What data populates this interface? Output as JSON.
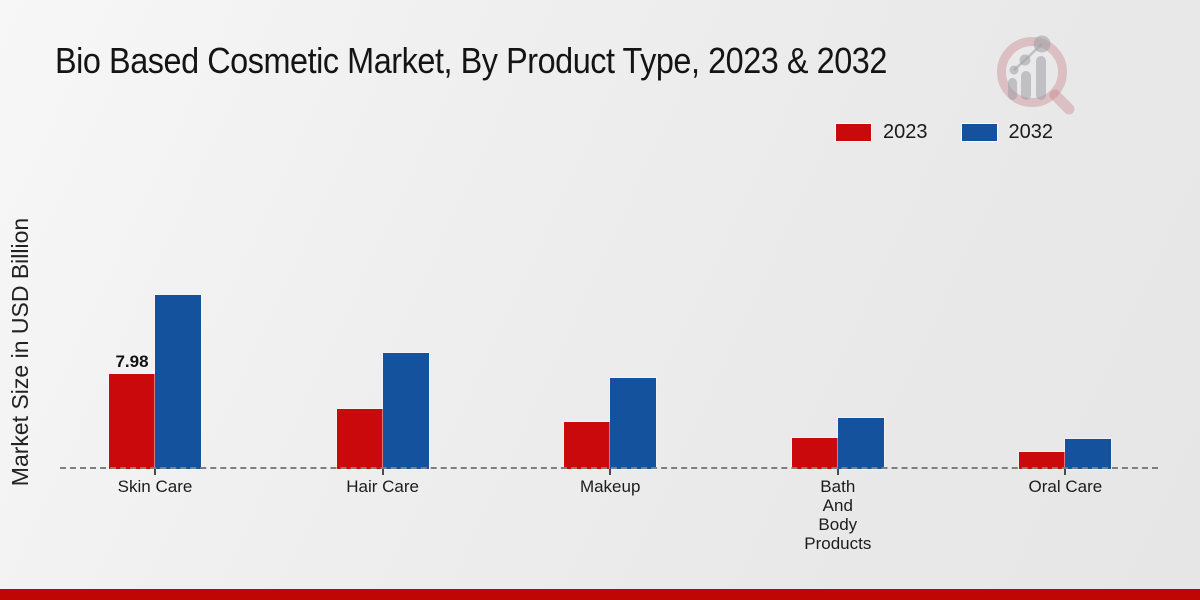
{
  "title": "Bio Based Cosmetic Market, By Product Type, 2023 & 2032",
  "ylabel": "Market Size in USD Billion",
  "legend": {
    "items": [
      {
        "label": "2023",
        "color": "#c9090b"
      },
      {
        "label": "2032",
        "color": "#15529e"
      }
    ]
  },
  "logo": {
    "name": "magnifier-bar-chart-watermark"
  },
  "footer": {
    "bar_color": "#c00505"
  },
  "colors": {
    "series_2023": "#c9090b",
    "series_2032": "#15529e",
    "baseline_dash": "#7f7f7f",
    "footer_stripe": "#c00505",
    "text": "#1a1a1a"
  },
  "chart_data": {
    "type": "bar",
    "title": "Bio Based Cosmetic Market, By Product Type, 2023 & 2032",
    "xlabel": "",
    "ylabel": "Market Size in USD Billion",
    "categories": [
      "Skin Care",
      "Hair Care",
      "Makeup",
      "Bath And Body Products",
      "Oral Care"
    ],
    "categories_display": [
      "Skin Care",
      "Hair Care",
      "Makeup",
      "Bath\nAnd\nBody\nProducts",
      "Oral Care"
    ],
    "series": [
      {
        "name": "2023",
        "color": "#c9090b",
        "values": [
          7.98,
          5.0,
          3.95,
          2.6,
          1.45
        ]
      },
      {
        "name": "2032",
        "color": "#15529e",
        "values": [
          14.6,
          9.75,
          7.65,
          4.3,
          2.5
        ]
      }
    ],
    "data_labels": [
      {
        "series_index": 0,
        "category_index": 0,
        "text": "7.98"
      }
    ],
    "ylim": [
      0,
      16
    ],
    "grid": false,
    "y_axis_ticks_visible": false,
    "legend_position": "top-right",
    "baseline_style": "dashed"
  }
}
